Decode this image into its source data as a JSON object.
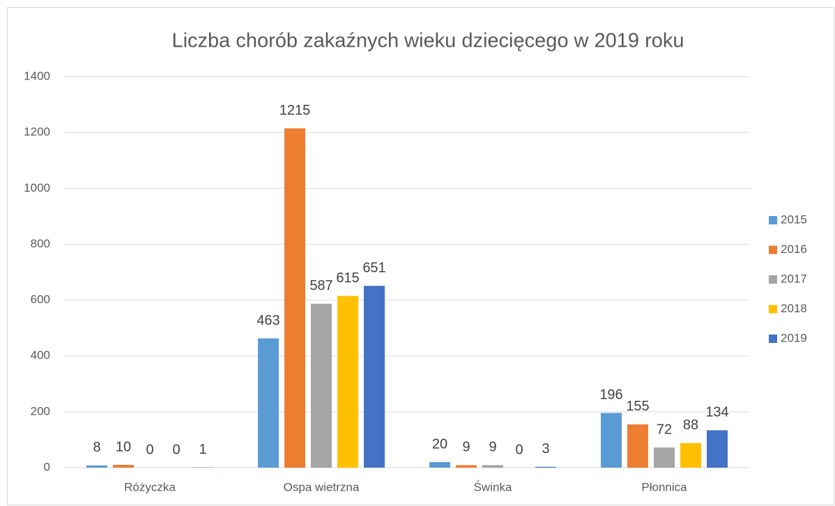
{
  "chart_data": {
    "type": "bar",
    "title": "Liczba chorób zakaźnych wieku dziecięcego w 2019 roku",
    "categories": [
      "Różyczka",
      "Ospa wietrzna",
      "Świnka",
      "Płonnica"
    ],
    "series": [
      {
        "name": "2015",
        "color": "#5b9bd5",
        "values": [
          8,
          463,
          20,
          196
        ]
      },
      {
        "name": "2016",
        "color": "#ed7d31",
        "values": [
          10,
          1215,
          9,
          155
        ]
      },
      {
        "name": "2017",
        "color": "#a5a5a5",
        "values": [
          0,
          587,
          9,
          72
        ]
      },
      {
        "name": "2018",
        "color": "#ffc000",
        "values": [
          0,
          615,
          0,
          88
        ]
      },
      {
        "name": "2019",
        "color": "#4472c4",
        "values": [
          1,
          651,
          3,
          134
        ]
      }
    ],
    "ylim": [
      0,
      1400
    ],
    "yticks": [
      0,
      200,
      400,
      600,
      800,
      1000,
      1200,
      1400
    ],
    "grid": true,
    "legend": "right"
  }
}
